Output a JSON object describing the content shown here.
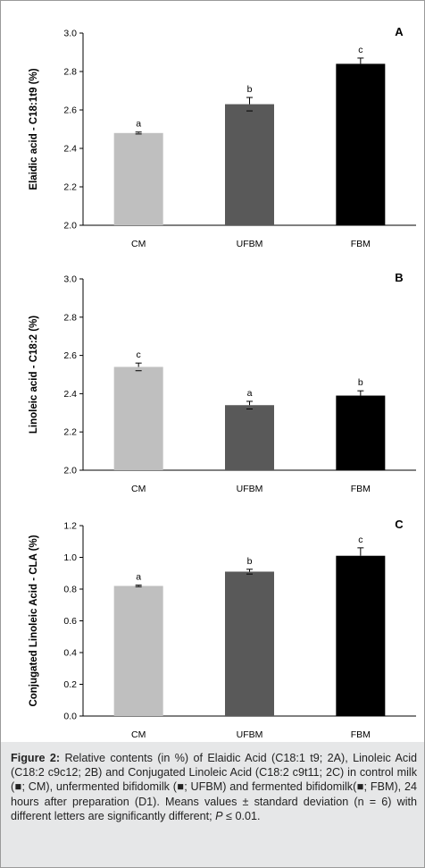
{
  "chart_data": [
    {
      "type": "bar",
      "panel_label": "A",
      "ylabel": "Elaidic acid  - C18:1t9 (%)",
      "categories": [
        "CM",
        "UFBM",
        "FBM"
      ],
      "values": [
        2.48,
        2.63,
        2.84
      ],
      "errors": [
        0.005,
        0.035,
        0.03
      ],
      "significance": [
        "a",
        "b",
        "c"
      ],
      "colors": [
        "#bfbfbf",
        "#595959",
        "#000000"
      ],
      "ylim": [
        2.0,
        3.0
      ],
      "yticks": [
        "2.0",
        "2.2",
        "2.4",
        "2.6",
        "2.8",
        "3.0"
      ],
      "ytick_values": [
        2.0,
        2.2,
        2.4,
        2.6,
        2.8,
        3.0
      ],
      "grid": false
    },
    {
      "type": "bar",
      "panel_label": "B",
      "ylabel": "Linoleic acid  - C18:2 (%)",
      "categories": [
        "CM",
        "UFBM",
        "FBM"
      ],
      "values": [
        2.54,
        2.34,
        2.39
      ],
      "errors": [
        0.02,
        0.02,
        0.025
      ],
      "significance": [
        "c",
        "a",
        "b"
      ],
      "colors": [
        "#bfbfbf",
        "#595959",
        "#000000"
      ],
      "ylim": [
        2.0,
        3.0
      ],
      "yticks": [
        "2.0",
        "2.2",
        "2.4",
        "2.6",
        "2.8",
        "3.0"
      ],
      "ytick_values": [
        2.0,
        2.2,
        2.4,
        2.6,
        2.8,
        3.0
      ],
      "grid": false
    },
    {
      "type": "bar",
      "panel_label": "C",
      "ylabel": "Conjugated Linoleic Acid  - CLA (%)",
      "categories": [
        "CM",
        "UFBM",
        "FBM"
      ],
      "values": [
        0.82,
        0.91,
        1.01
      ],
      "errors": [
        0.005,
        0.015,
        0.05
      ],
      "significance": [
        "a",
        "b",
        "c"
      ],
      "colors": [
        "#bfbfbf",
        "#595959",
        "#000000"
      ],
      "ylim": [
        0.0,
        1.2
      ],
      "yticks": [
        "0.0",
        "0.2",
        "0.4",
        "0.6",
        "0.8",
        "1.0",
        "1.2"
      ],
      "ytick_values": [
        0.0,
        0.2,
        0.4,
        0.6,
        0.8,
        1.0,
        1.2
      ],
      "grid": false
    }
  ],
  "caption": {
    "label": "Figure 2:",
    "text": " Relative contents (in %) of Elaidic Acid (C18:1 t9; 2A), Linoleic Acid (C18:2 c9c12; 2B) and Conjugated Linoleic Acid (C18:2 c9t11; 2C) in control milk (■; CM), unfermented bifidomilk (■; UFBM) and fermented bifidomilk(■; FBM), 24 hours after preparation (D1). Means values ± standard deviation (n = 6) with different letters are significantly different; ",
    "p_symbol": "P",
    "p_suffix": " ≤ 0.01."
  }
}
